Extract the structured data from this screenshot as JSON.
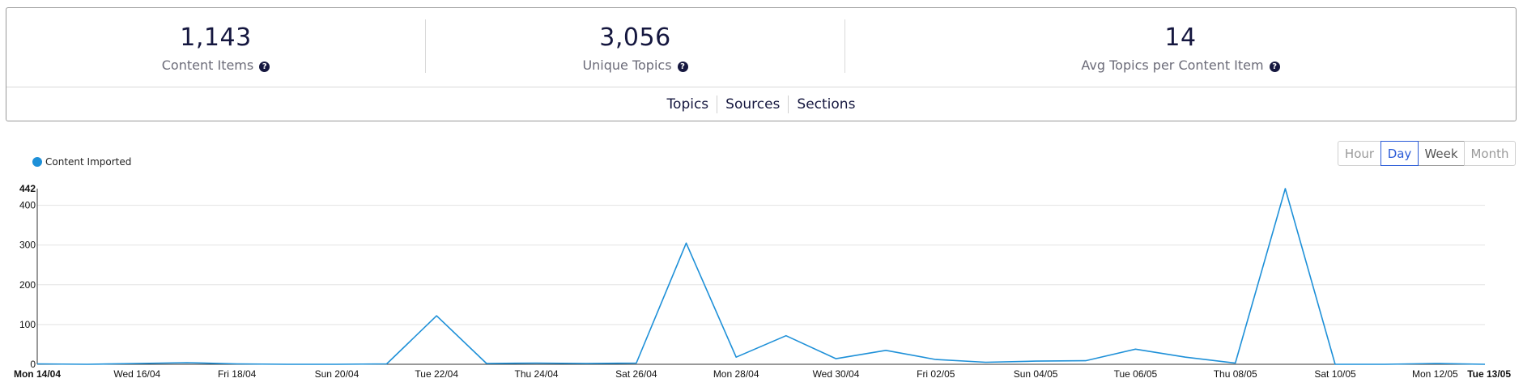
{
  "stats": [
    {
      "value": "1,143",
      "label": "Content Items"
    },
    {
      "value": "3,056",
      "label": "Unique Topics"
    },
    {
      "value": "14",
      "label": "Avg Topics per Content Item"
    }
  ],
  "help_icon_glyph": "?",
  "tabs": [
    "Topics",
    "Sources",
    "Sections"
  ],
  "period_buttons": [
    "Hour",
    "Day",
    "Week",
    "Month"
  ],
  "selected_period": "Day",
  "colors": {
    "series": "#1e90d8",
    "active_button": "#2a5bd7",
    "text_dark": "#15173f"
  },
  "chart_data": {
    "type": "line",
    "series": [
      {
        "name": "Content Imported",
        "values": [
          1,
          0,
          2,
          4,
          1,
          0,
          0,
          1,
          122,
          2,
          3,
          2,
          3,
          305,
          18,
          72,
          14,
          35,
          12,
          5,
          8,
          9,
          38,
          18,
          3,
          442,
          0,
          0,
          2,
          0
        ]
      }
    ],
    "x_range": [
      "Mon 14/04",
      "Tue 13/05"
    ],
    "x_ticks": [
      "Mon 14/04",
      "Wed 16/04",
      "Fri 18/04",
      "Sun 20/04",
      "Tue 22/04",
      "Thu 24/04",
      "Sat 26/04",
      "Mon 28/04",
      "Wed 30/04",
      "Fri 02/05",
      "Sun 04/05",
      "Tue 06/05",
      "Thu 08/05",
      "Sat 10/05",
      "Mon 12/05",
      "Tue 13/05"
    ],
    "y_ticks": [
      "0",
      "100",
      "200",
      "300",
      "400",
      "442"
    ],
    "ylim": [
      0,
      442
    ],
    "grid": true,
    "legend": "top-left"
  }
}
